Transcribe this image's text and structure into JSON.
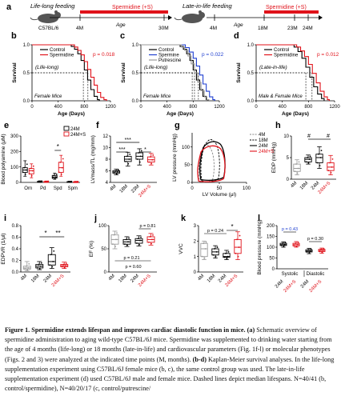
{
  "panel_a": {
    "letter": "a",
    "left_schematic": {
      "title": "Life-long feeding",
      "bar_label": "Spermidine (+S)",
      "strain": "C57BL/6",
      "start": "4M",
      "axis": "Age",
      "end": "30M"
    },
    "right_schematic": {
      "title": "Late-in-life feeding",
      "bar_label": "Spermidine (+S)",
      "start": "4M",
      "axis": "Age",
      "ticks": [
        "18M",
        "23M",
        "24M"
      ]
    }
  },
  "chart_data": [
    {
      "id": "b",
      "type": "line",
      "letter": "b",
      "title": "",
      "xlabel": "Age (Days)",
      "ylabel": "Survival",
      "xlim": [
        0,
        1200
      ],
      "ylim": [
        0.0,
        1.0
      ],
      "xticks": [
        "0",
        "400",
        "800",
        "1200"
      ],
      "yticks": [
        "0.0",
        "0.5",
        "1.0"
      ],
      "series": [
        {
          "name": "Control",
          "color": "#000000",
          "points": [
            [
              0,
              1
            ],
            [
              560,
              1
            ],
            [
              600,
              0.97
            ],
            [
              650,
              0.92
            ],
            [
              700,
              0.84
            ],
            [
              750,
              0.72
            ],
            [
              800,
              0.55
            ],
            [
              850,
              0.37
            ],
            [
              900,
              0.2
            ],
            [
              950,
              0.08
            ],
            [
              1000,
              0.02
            ],
            [
              1030,
              0
            ]
          ]
        },
        {
          "name": "Spermidine",
          "color": "#e0121a",
          "points": [
            [
              0,
              1
            ],
            [
              600,
              1
            ],
            [
              650,
              0.96
            ],
            [
              700,
              0.9
            ],
            [
              750,
              0.82
            ],
            [
              800,
              0.7
            ],
            [
              850,
              0.56
            ],
            [
              900,
              0.42
            ],
            [
              950,
              0.28
            ],
            [
              1000,
              0.15
            ],
            [
              1050,
              0.06
            ],
            [
              1100,
              0.02
            ],
            [
              1140,
              0
            ]
          ]
        }
      ],
      "medians": [
        785,
        855
      ],
      "annotations": [
        "p = 0.018",
        "(Life-long)",
        "Female Mice"
      ]
    },
    {
      "id": "c",
      "type": "line",
      "letter": "c",
      "title": "",
      "xlabel": "Age (Days)",
      "ylabel": "Survival",
      "xlim": [
        0,
        1200
      ],
      "ylim": [
        0.0,
        1.0
      ],
      "xticks": [
        "0",
        "400",
        "800",
        "1200"
      ],
      "yticks": [
        "0.0",
        "0.5",
        "1.0"
      ],
      "series": [
        {
          "name": "Control",
          "color": "#000000",
          "points": [
            [
              0,
              1
            ],
            [
              560,
              1
            ],
            [
              600,
              0.97
            ],
            [
              650,
              0.92
            ],
            [
              700,
              0.84
            ],
            [
              750,
              0.72
            ],
            [
              800,
              0.55
            ],
            [
              850,
              0.37
            ],
            [
              900,
              0.2
            ],
            [
              950,
              0.08
            ],
            [
              1000,
              0.02
            ],
            [
              1030,
              0
            ]
          ]
        },
        {
          "name": "Spermine",
          "color": "#1f3fd0",
          "points": [
            [
              0,
              1
            ],
            [
              620,
              1
            ],
            [
              680,
              0.95
            ],
            [
              740,
              0.87
            ],
            [
              800,
              0.76
            ],
            [
              850,
              0.62
            ],
            [
              900,
              0.46
            ],
            [
              950,
              0.3
            ],
            [
              1000,
              0.17
            ],
            [
              1050,
              0.07
            ],
            [
              1100,
              0.02
            ],
            [
              1130,
              0
            ]
          ]
        },
        {
          "name": "Putrescine",
          "color": "#9a9a9a",
          "points": [
            [
              0,
              1
            ],
            [
              570,
              1
            ],
            [
              620,
              0.96
            ],
            [
              670,
              0.9
            ],
            [
              720,
              0.8
            ],
            [
              770,
              0.66
            ],
            [
              820,
              0.5
            ],
            [
              870,
              0.33
            ],
            [
              920,
              0.18
            ],
            [
              970,
              0.07
            ],
            [
              1010,
              0.02
            ],
            [
              1040,
              0
            ]
          ]
        }
      ],
      "medians": [
        785,
        820,
        880
      ],
      "annotations": [
        "p = 0.022",
        "(Life-long)",
        "Female Mice"
      ]
    },
    {
      "id": "d",
      "type": "line",
      "letter": "d",
      "title": "",
      "xlabel": "Age (Days)",
      "ylabel": "Survival",
      "xlim": [
        0,
        1200
      ],
      "ylim": [
        0.0,
        1.0
      ],
      "xticks": [
        "0",
        "400",
        "800",
        "1200"
      ],
      "yticks": [
        "0.0",
        "0.5",
        "1.0"
      ],
      "series": [
        {
          "name": "Control",
          "color": "#000000",
          "points": [
            [
              0,
              1
            ],
            [
              520,
              1
            ],
            [
              580,
              0.96
            ],
            [
              640,
              0.88
            ],
            [
              700,
              0.76
            ],
            [
              760,
              0.6
            ],
            [
              820,
              0.42
            ],
            [
              880,
              0.25
            ],
            [
              940,
              0.12
            ],
            [
              1000,
              0.04
            ],
            [
              1040,
              0
            ]
          ]
        },
        {
          "name": "Spermidine",
          "color": "#e0121a",
          "points": [
            [
              0,
              1
            ],
            [
              560,
              1
            ],
            [
              620,
              0.96
            ],
            [
              680,
              0.89
            ],
            [
              740,
              0.79
            ],
            [
              800,
              0.65
            ],
            [
              860,
              0.49
            ],
            [
              920,
              0.32
            ],
            [
              980,
              0.17
            ],
            [
              1040,
              0.07
            ],
            [
              1090,
              0.02
            ],
            [
              1120,
              0
            ]
          ]
        }
      ],
      "medians": [
        760,
        855
      ],
      "annotations": [
        "p = 0.012",
        "(Late-in-life)",
        "Male & Female Mice"
      ]
    },
    {
      "id": "e",
      "type": "box",
      "letter": "e",
      "title": "",
      "ylabel": "Blood polyamine (μM)",
      "ylim": [
        0,
        300
      ],
      "yticks": [
        "0",
        "100",
        "200",
        "300"
      ],
      "categories": [
        "Orn",
        "Pd",
        "Spd",
        "Spm"
      ],
      "series": [
        {
          "name": "24M",
          "color": "#000000"
        },
        {
          "name": "24M+S",
          "color": "#e0121a"
        }
      ],
      "boxes": [
        {
          "cat": 0,
          "s": 0,
          "min": 40,
          "q1": 65,
          "med": 80,
          "q3": 95,
          "max": 140
        },
        {
          "cat": 0,
          "s": 1,
          "min": 30,
          "q1": 55,
          "med": 75,
          "q3": 90,
          "max": 120
        },
        {
          "cat": 1,
          "s": 0,
          "min": 1,
          "q1": 3,
          "med": 5,
          "q3": 7,
          "max": 10
        },
        {
          "cat": 1,
          "s": 1,
          "min": 1,
          "q1": 2,
          "med": 4,
          "q3": 6,
          "max": 9
        },
        {
          "cat": 2,
          "s": 0,
          "min": 20,
          "q1": 28,
          "med": 35,
          "q3": 45,
          "max": 60
        },
        {
          "cat": 2,
          "s": 1,
          "min": 40,
          "q1": 65,
          "med": 95,
          "q3": 130,
          "max": 175
        },
        {
          "cat": 3,
          "s": 0,
          "min": 1,
          "q1": 2,
          "med": 3,
          "q3": 5,
          "max": 8
        },
        {
          "cat": 3,
          "s": 1,
          "min": 1,
          "q1": 2,
          "med": 3,
          "q3": 4,
          "max": 7
        }
      ],
      "annotations": [
        "*"
      ]
    },
    {
      "id": "f",
      "type": "box",
      "letter": "f",
      "title": "",
      "ylabel": "LVmass/TL (mg/mm)",
      "ylim": [
        4,
        12
      ],
      "yticks": [
        "4",
        "6",
        "8",
        "10",
        "12"
      ],
      "categories": [
        "4M",
        "18M",
        "23M",
        "24M+S"
      ],
      "boxes": [
        {
          "cat": 0,
          "color": "#000000",
          "min": 5.3,
          "q1": 5.6,
          "med": 5.8,
          "q3": 6.0,
          "max": 6.3
        },
        {
          "cat": 1,
          "color": "#000000",
          "min": 6.8,
          "q1": 7.6,
          "med": 8.0,
          "q3": 8.5,
          "max": 9.2
        },
        {
          "cat": 2,
          "color": "#000000",
          "min": 7.0,
          "q1": 8.0,
          "med": 8.5,
          "q3": 9.1,
          "max": 9.8
        },
        {
          "cat": 3,
          "color": "#e0121a",
          "min": 7.0,
          "q1": 7.5,
          "med": 7.9,
          "q3": 8.4,
          "max": 9.0
        }
      ],
      "annotations": [
        "***",
        "***",
        "*"
      ]
    },
    {
      "id": "g",
      "type": "line",
      "letter": "g",
      "title": "",
      "xlabel": "LV Volume (μl)",
      "ylabel": "LV pressure (mmHg)",
      "xlim": [
        0,
        100
      ],
      "ylim": [
        0,
        140
      ],
      "xticks": [
        "0",
        "50",
        "100"
      ],
      "yticks": [
        "0",
        "50",
        "100"
      ],
      "series": [
        {
          "name": "4M",
          "color": "#888888",
          "style": "dashed"
        },
        {
          "name": "18M",
          "color": "#000000",
          "style": "dashed"
        },
        {
          "name": "24M",
          "color": "#000000",
          "style": "solid"
        },
        {
          "name": "24M+S",
          "color": "#e0121a",
          "style": "solid"
        }
      ],
      "loops": [
        {
          "s": 0,
          "esv": 14,
          "edv": 38,
          "edp": 5,
          "esp": 105
        },
        {
          "s": 1,
          "esv": 18,
          "edv": 48,
          "edp": 6,
          "esp": 118
        },
        {
          "s": 2,
          "esv": 16,
          "edv": 58,
          "edp": 10,
          "esp": 112
        },
        {
          "s": 3,
          "esv": 12,
          "edv": 58,
          "edp": 6,
          "esp": 100
        }
      ]
    },
    {
      "id": "h",
      "type": "box",
      "letter": "h",
      "title": "",
      "ylabel": "EDP (mmHg)",
      "ylim": [
        0,
        10
      ],
      "yticks": [
        "0",
        "5",
        "10"
      ],
      "categories": [
        "4M",
        "18M",
        "24M",
        "24M+S"
      ],
      "boxes": [
        {
          "cat": 0,
          "color": "#9a9a9a",
          "min": 1.0,
          "q1": 1.8,
          "med": 2.5,
          "q3": 3.5,
          "max": 4.5
        },
        {
          "cat": 1,
          "color": "#000000",
          "min": 3.5,
          "q1": 4.0,
          "med": 4.6,
          "q3": 5.0,
          "max": 5.6
        },
        {
          "cat": 2,
          "color": "#000000",
          "min": 2.5,
          "q1": 3.8,
          "med": 5.0,
          "q3": 5.8,
          "max": 7.5
        },
        {
          "cat": 3,
          "color": "#e0121a",
          "min": 1.0,
          "q1": 2.0,
          "med": 2.8,
          "q3": 3.8,
          "max": 5.5
        }
      ],
      "annotations": [
        "#",
        "#"
      ]
    },
    {
      "id": "i",
      "type": "box",
      "letter": "i",
      "title": "",
      "ylabel": "EDPVR (1/μl)",
      "ylim": [
        0.0,
        0.8
      ],
      "yticks": [
        "0.0",
        "0.2",
        "0.4",
        "0.6",
        "0.8"
      ],
      "categories": [
        "4M",
        "18M",
        "24M",
        "24M+S"
      ],
      "boxes": [
        {
          "cat": 0,
          "color": "#9a9a9a",
          "min": 0.02,
          "q1": 0.05,
          "med": 0.07,
          "q3": 0.1,
          "max": 0.18
        },
        {
          "cat": 1,
          "color": "#000000",
          "min": 0.04,
          "q1": 0.07,
          "med": 0.1,
          "q3": 0.13,
          "max": 0.18
        },
        {
          "cat": 2,
          "color": "#000000",
          "min": 0.06,
          "q1": 0.12,
          "med": 0.18,
          "q3": 0.3,
          "max": 0.42
        },
        {
          "cat": 3,
          "color": "#e0121a",
          "min": 0.06,
          "q1": 0.09,
          "med": 0.11,
          "q3": 0.13,
          "max": 0.17
        }
      ],
      "annotations": [
        "*",
        "**"
      ]
    },
    {
      "id": "j",
      "type": "box",
      "letter": "j",
      "title": "",
      "ylabel": "EF (%)",
      "ylim": [
        0,
        100
      ],
      "yticks": [
        "0",
        "50",
        "100"
      ],
      "categories": [
        "4M",
        "18M",
        "24M",
        "24M+S"
      ],
      "boxes": [
        {
          "cat": 0,
          "color": "#9a9a9a",
          "min": 50,
          "q1": 60,
          "med": 70,
          "q3": 80,
          "max": 88
        },
        {
          "cat": 1,
          "color": "#000000",
          "min": 55,
          "q1": 60,
          "med": 65,
          "q3": 70,
          "max": 76
        },
        {
          "cat": 2,
          "color": "#000000",
          "min": 56,
          "q1": 62,
          "med": 68,
          "q3": 72,
          "max": 78
        },
        {
          "cat": 3,
          "color": "#e0121a",
          "min": 58,
          "q1": 64,
          "med": 70,
          "q3": 76,
          "max": 83
        }
      ],
      "annotations": [
        "p = 0.81",
        "p = 0.21",
        "p = 0.60"
      ]
    },
    {
      "id": "k",
      "type": "box",
      "letter": "k",
      "title": "",
      "ylabel": "VVC",
      "ylim": [
        0,
        3
      ],
      "yticks": [
        "0",
        "1",
        "2",
        "3"
      ],
      "categories": [
        "4M",
        "18M",
        "24M",
        "24M+S"
      ],
      "boxes": [
        {
          "cat": 0,
          "color": "#9a9a9a",
          "min": 0.8,
          "q1": 1.0,
          "med": 1.5,
          "q3": 1.85,
          "max": 2.0
        },
        {
          "cat": 1,
          "color": "#000000",
          "min": 0.9,
          "q1": 1.1,
          "med": 1.3,
          "q3": 1.5,
          "max": 1.7
        },
        {
          "cat": 2,
          "color": "#000000",
          "min": 0.8,
          "q1": 0.95,
          "med": 1.0,
          "q3": 1.2,
          "max": 1.4
        },
        {
          "cat": 3,
          "color": "#e0121a",
          "min": 0.8,
          "q1": 1.2,
          "med": 1.6,
          "q3": 2.1,
          "max": 2.6
        }
      ],
      "annotations": [
        "p = 0.24",
        "*"
      ]
    },
    {
      "id": "l",
      "type": "box",
      "letter": "l",
      "title": "",
      "ylabel": "Blood pressure (mmHg)",
      "ylim": [
        0,
        200
      ],
      "yticks": [
        "0",
        "50",
        "100",
        "150",
        "200"
      ],
      "categories": [
        "24M",
        "24M+S",
        "24M",
        "24M+S"
      ],
      "groups": [
        "Systolic",
        "Diastolic"
      ],
      "boxes": [
        {
          "cat": 0,
          "color": "#000000",
          "min": 100,
          "q1": 108,
          "med": 112,
          "q3": 118,
          "max": 125
        },
        {
          "cat": 1,
          "color": "#e0121a",
          "min": 100,
          "q1": 106,
          "med": 112,
          "q3": 118,
          "max": 126
        },
        {
          "cat": 2,
          "color": "#000000",
          "min": 70,
          "q1": 78,
          "med": 82,
          "q3": 88,
          "max": 95
        },
        {
          "cat": 3,
          "color": "#e0121a",
          "min": 72,
          "q1": 80,
          "med": 85,
          "q3": 90,
          "max": 96
        }
      ],
      "annotations": [
        "p = 0.43",
        "p = 0.30"
      ]
    }
  ],
  "caption": {
    "title": "Figure 1. Spermidine extends lifespan and improves cardiac diastolic function in mice.",
    "part_a_label": "(a)",
    "part_a": " Schematic overview of spermidine administration to aging wild-type C57BL/6J mice. Spermidine was supplemented to drinking water starting from the age of 4 months (life-long) or 18 months (late-in-life) and cardiovascular parameters (Fig. 1f-l) or molecular phenotypes (Figs. 2 and 3) were analyzed at the indicated time points (M, months).",
    "part_bd_label": "(b-d)",
    "part_bd": " Kaplan-Meier survival analyses. In the life-long supplementation experiment using C57BL/6J female mice (b, c), the same control group was used. The late-in-life supplementation experiment (d) used C57BL/6J male and female mice. Dashed lines depict median lifespans. N=40/41 (b, control/spermidine), N=40/20/17 (c, control/putrescine/"
  }
}
